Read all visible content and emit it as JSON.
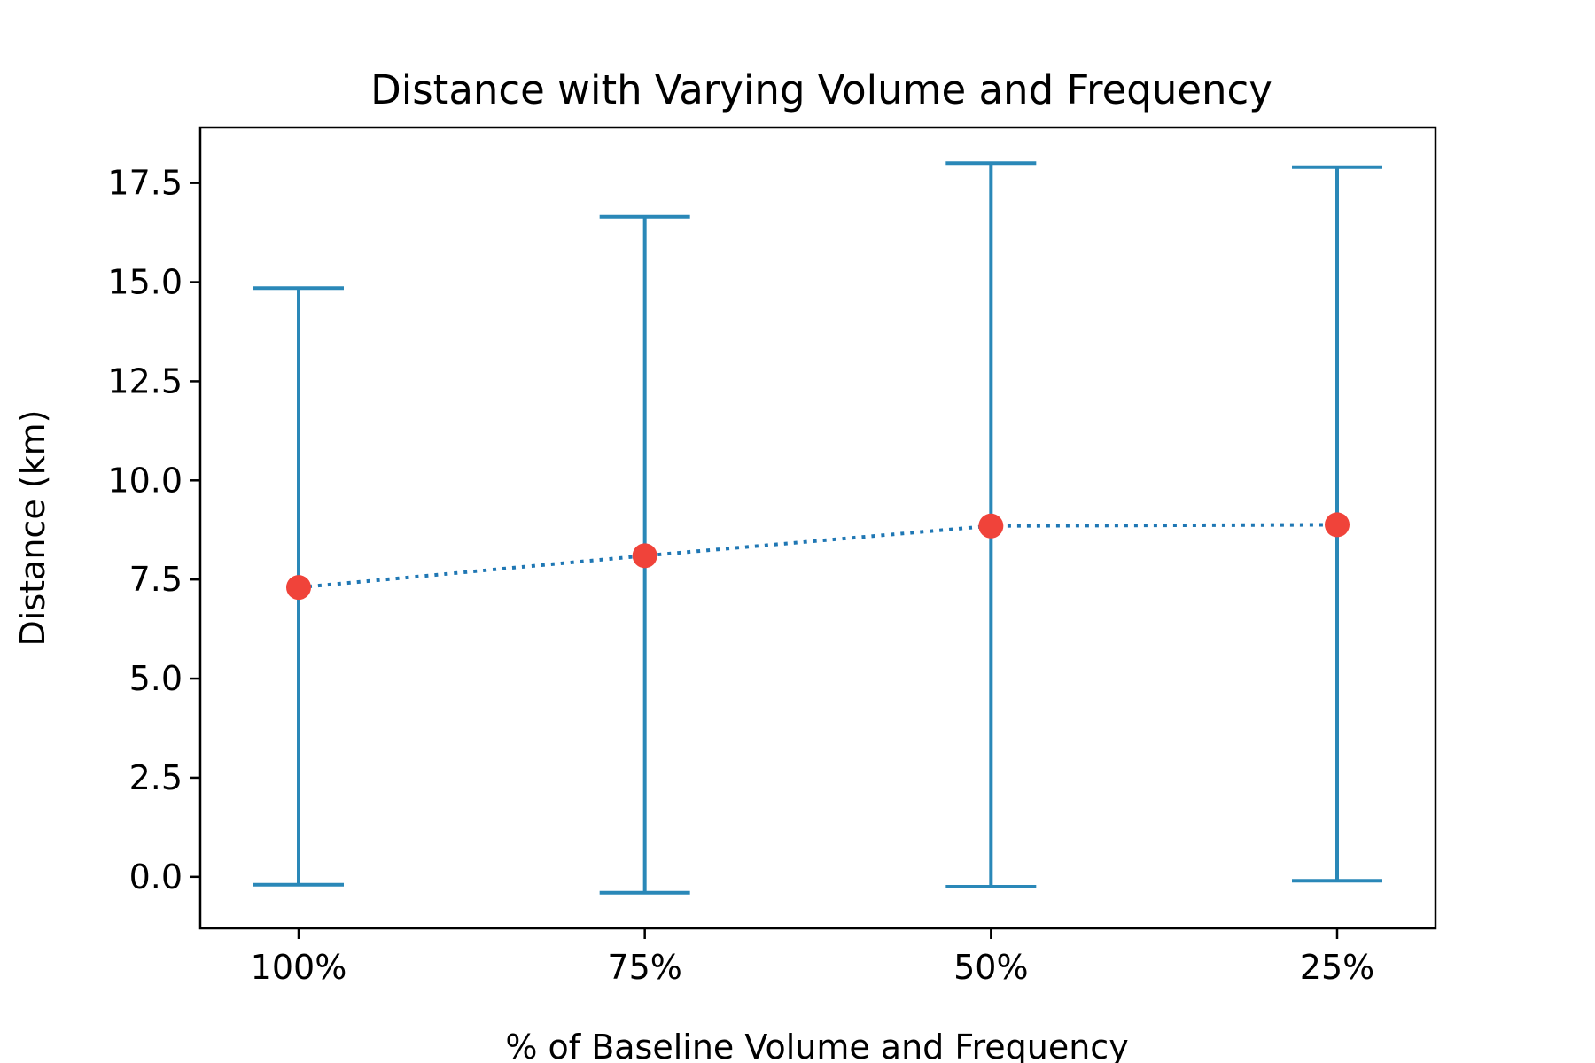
{
  "chart_data": {
    "type": "scatter",
    "title": "Distance with Varying Volume and Frequency",
    "xlabel": "% of Baseline Volume and Frequency",
    "ylabel": "Distance (km)",
    "categories": [
      "100%",
      "75%",
      "50%",
      "25%"
    ],
    "ylim": [
      -1.3,
      18.9
    ],
    "yticks": [
      "0.0",
      "2.5",
      "5.0",
      "7.5",
      "10.0",
      "12.5",
      "15.0",
      "17.5"
    ],
    "ytick_values": [
      0,
      2.5,
      5,
      7.5,
      10,
      12.5,
      15,
      17.5
    ],
    "grid": false,
    "series": [
      {
        "values": [
          7.3,
          8.1,
          8.85,
          8.88
        ],
        "error_low": [
          -0.2,
          -0.4,
          -0.25,
          -0.1
        ],
        "error_high": [
          14.85,
          16.65,
          18.0,
          17.9
        ],
        "marker_color": "#f0433a",
        "line_color": "#1f77b4",
        "line_style": "dotted",
        "errorbar_color": "#2a88b8"
      }
    ]
  }
}
